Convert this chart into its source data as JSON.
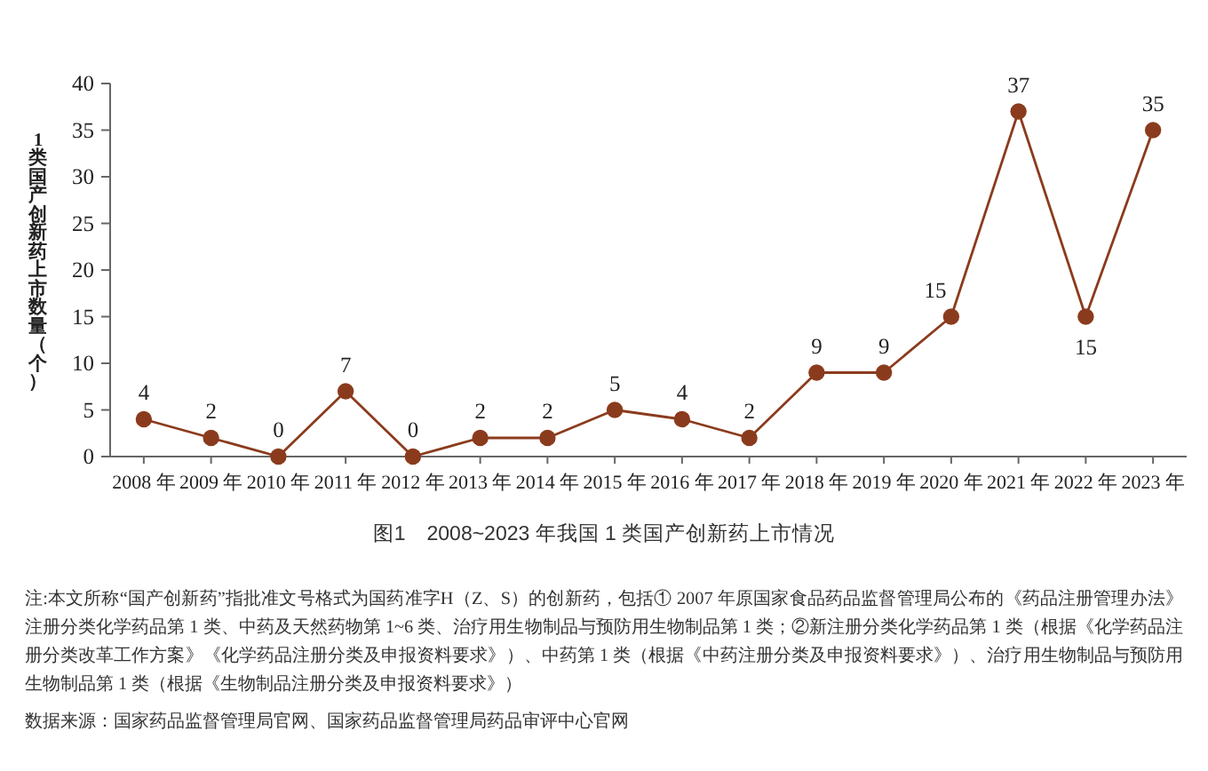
{
  "chart_data": {
    "type": "line",
    "title": "图1　2008~2023 年我国 1 类国产创新药上市情况",
    "ylabel": "1类国产创新药上市数量（个）",
    "categories": [
      "2008 年",
      "2009 年",
      "2010 年",
      "2011 年",
      "2012 年",
      "2013 年",
      "2014 年",
      "2015 年",
      "2016 年",
      "2017 年",
      "2018 年",
      "2019 年",
      "2020 年",
      "2021 年",
      "2022 年",
      "2023 年"
    ],
    "series": [
      {
        "color": "#8b3b1d",
        "values": [
          4,
          2,
          0,
          7,
          0,
          2,
          2,
          5,
          4,
          2,
          9,
          9,
          15,
          37,
          15,
          35
        ]
      }
    ],
    "ylim": [
      0,
      40
    ],
    "yticks": [
      0,
      5,
      10,
      15,
      20,
      25,
      30,
      35,
      40
    ],
    "data_labels": true,
    "marker": "circle",
    "line_style": "solid",
    "annotations": [
      "注:本文所称“国产创新药”指批准文号格式为国药准字H（Z、S）的创新药，包括① 2007 年原国家食品药品监督管理局公布的《药品注册管理办法》注册分类化学药品第 1 类、中药及天然药物第 1~6 类、治疗用生物制品与预防用生物制品第 1 类；②新注册分类化学药品第 1 类（根据《化学药品注册分类改革工作方案》《化学药品注册分类及申报资料要求》）、中药第 1 类（根据《中药注册分类及申报资料要求》）、治疗用生物制品与预防用生物制品第 1 类（根据《生物制品注册分类及申报资料要求》）",
      "数据来源：国家药品监督管理局官网、国家药品监督管理局药品审评中心官网"
    ]
  }
}
